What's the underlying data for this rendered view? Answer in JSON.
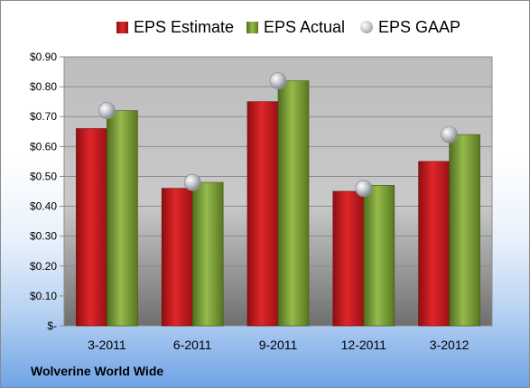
{
  "chart_data": {
    "type": "bar",
    "title": "",
    "xlabel": "",
    "ylabel": "",
    "categories": [
      "3-2011",
      "6-2011",
      "9-2011",
      "12-2011",
      "3-2012"
    ],
    "series": [
      {
        "name": "EPS Estimate",
        "kind": "bar",
        "color": "#c8191b",
        "values": [
          0.66,
          0.46,
          0.75,
          0.45,
          0.55
        ]
      },
      {
        "name": "EPS Actual",
        "kind": "bar",
        "color": "#7fa33a",
        "values": [
          0.72,
          0.48,
          0.82,
          0.47,
          0.64
        ]
      },
      {
        "name": "EPS GAAP",
        "kind": "marker",
        "color": "#b8bcc4",
        "values": [
          0.72,
          0.48,
          0.82,
          0.46,
          0.64
        ]
      }
    ],
    "ylim": [
      0,
      0.9
    ],
    "yticks": [
      0,
      0.1,
      0.2,
      0.3,
      0.4,
      0.5,
      0.6,
      0.7,
      0.8,
      0.9
    ],
    "ytick_labels": [
      "$-",
      "$0.10",
      "$0.20",
      "$0.30",
      "$0.40",
      "$0.50",
      "$0.60",
      "$0.70",
      "$0.80",
      "$0.90"
    ],
    "grid": true,
    "legend_position": "top"
  },
  "footer": {
    "company": "Wolverine World Wide"
  }
}
